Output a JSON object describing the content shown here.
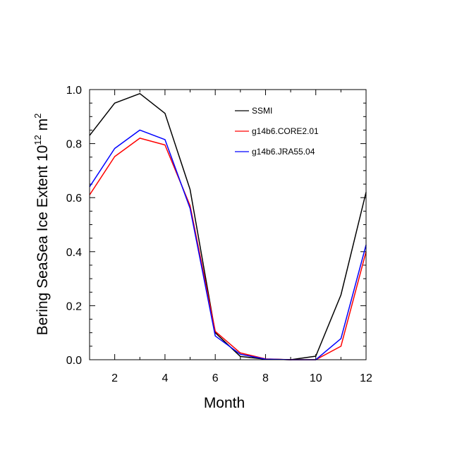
{
  "chart_data": {
    "type": "line",
    "title": "",
    "xlabel": "Month",
    "ylabel_main": "Bering SeaSea Ice Extent 10",
    "ylabel_sup": "12",
    "ylabel_unit": "m",
    "ylabel_unit_sup": "2",
    "xlim": [
      1,
      12
    ],
    "ylim": [
      0.0,
      1.0
    ],
    "x_ticks": [
      2,
      4,
      6,
      8,
      10,
      12
    ],
    "x_tick_labels": [
      "2",
      "4",
      "6",
      "8",
      "10",
      "12"
    ],
    "y_ticks": [
      0.0,
      0.2,
      0.4,
      0.6,
      0.8,
      1.0
    ],
    "y_tick_labels": [
      "0.0",
      "0.2",
      "0.4",
      "0.6",
      "0.8",
      "1.0"
    ],
    "legend_position": "top-right",
    "x": [
      1,
      2,
      3,
      4,
      5,
      6,
      7,
      8,
      9,
      10,
      11,
      12
    ],
    "series": [
      {
        "name": "SSMI",
        "color": "#000000",
        "values": [
          0.83,
          0.95,
          0.985,
          0.912,
          0.63,
          0.1,
          0.012,
          0.002,
          0.0,
          0.013,
          0.24,
          0.62
        ]
      },
      {
        "name": "g14b6.CORE2.01",
        "color": "#ff0000",
        "values": [
          0.61,
          0.752,
          0.82,
          0.795,
          0.57,
          0.105,
          0.025,
          0.003,
          0.0,
          0.0,
          0.05,
          0.4
        ]
      },
      {
        "name": "g14b6.JRA55.04",
        "color": "#0000ff",
        "values": [
          0.64,
          0.782,
          0.85,
          0.815,
          0.56,
          0.088,
          0.02,
          0.002,
          0.0,
          0.0,
          0.078,
          0.425
        ]
      }
    ]
  }
}
